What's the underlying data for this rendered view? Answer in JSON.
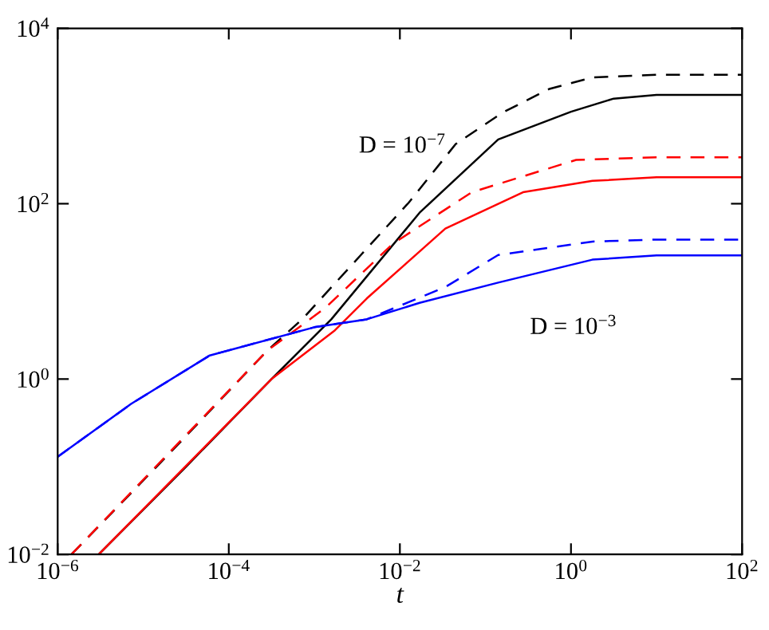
{
  "chart_data": {
    "type": "line",
    "log": "xy",
    "xlabel": "t",
    "xlim": [
      1e-06,
      100
    ],
    "ylim": [
      0.01,
      10000
    ],
    "xticks": [
      {
        "value": 1e-06,
        "label": "10$^{−6}$"
      },
      {
        "value": 0.0001,
        "label": "10$^{−4}$"
      },
      {
        "value": 0.01,
        "label": "10$^{−2}$"
      },
      {
        "value": 1,
        "label": "10$^{0}$"
      },
      {
        "value": 100,
        "label": "10$^{2}$"
      }
    ],
    "yticks": [
      {
        "value": 0.01,
        "label": "10$^{−2}$"
      },
      {
        "value": 1,
        "label": "10$^{0}$"
      },
      {
        "value": 100,
        "label": "10$^{2}$"
      },
      {
        "value": 10000,
        "label": "10$^{4}$"
      }
    ],
    "grid": false,
    "marker": "none",
    "annotations": [
      "D = 10$^{−7}$",
      "D = 10$^{−3}$"
    ],
    "series": [
      {
        "color": "#000000",
        "line_style": "solid",
        "x": [
          3.02e-06,
          3.16e-05,
          0.000316,
          0.00158,
          0.017,
          0.141,
          1,
          3.16,
          10,
          100
        ],
        "values": [
          0.01,
          0.1,
          1,
          4.8,
          79,
          540,
          1120,
          1580,
          1740,
          1740
        ]
      },
      {
        "color": "#000000",
        "line_style": "dashed",
        "x": [
          1.45e-06,
          2e-05,
          0.00028,
          0.00072,
          0.0035,
          0.0126,
          0.045,
          0.16,
          0.56,
          1.78,
          10,
          100
        ],
        "values": [
          0.01,
          0.14,
          2.1,
          4.8,
          26,
          102,
          480,
          1100,
          2040,
          2750,
          2950,
          2950
        ]
      },
      {
        "color": "#ff0000",
        "line_style": "solid",
        "x": [
          3.02e-06,
          0.000316,
          0.00174,
          0.0041,
          0.034,
          0.275,
          1.78,
          10,
          100
        ],
        "values": [
          0.01,
          1,
          3.6,
          8.3,
          52,
          135,
          182,
          200,
          200
        ]
      },
      {
        "color": "#ff0000",
        "line_style": "dashed",
        "x": [
          1.45e-06,
          0.00028,
          0.00135,
          0.0083,
          0.069,
          1.15,
          10,
          100
        ],
        "values": [
          0.01,
          2.1,
          6.5,
          35,
          135,
          316,
          339,
          339
        ]
      },
      {
        "color": "#0000ff",
        "line_style": "solid",
        "x": [
          1e-06,
          7.2e-06,
          6e-05,
          0.001,
          0.0041,
          0.017,
          0.141,
          1.78,
          10,
          100
        ],
        "values": [
          0.13,
          0.52,
          1.86,
          3.9,
          4.8,
          7.4,
          12.6,
          23,
          25.7,
          25.7
        ]
      },
      {
        "color": "#0000ff",
        "line_style": "dashed",
        "x": [
          1e-06,
          7.2e-06,
          6e-05,
          0.001,
          0.0041,
          0.034,
          0.141,
          1.78,
          10,
          100
        ],
        "values": [
          0.13,
          0.52,
          1.86,
          3.9,
          4.8,
          11.2,
          26,
          37,
          39,
          39
        ]
      }
    ]
  }
}
